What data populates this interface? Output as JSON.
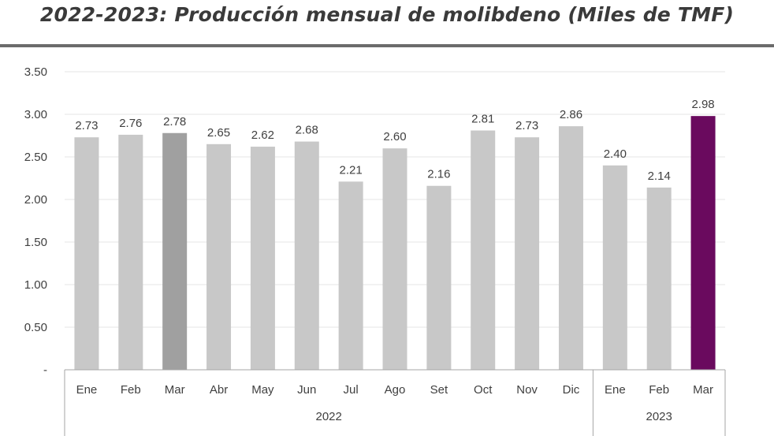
{
  "title": "2022-2023: Producción mensual de molibdeno (Miles de TMF)",
  "chart_data": {
    "type": "bar",
    "title": "2022-2023: Producción mensual de molibdeno (Miles de TMF)",
    "categories": [
      "Ene",
      "Feb",
      "Mar",
      "Abr",
      "May",
      "Jun",
      "Jul",
      "Ago",
      "Set",
      "Oct",
      "Nov",
      "Dic",
      "Ene",
      "Feb",
      "Mar"
    ],
    "groups": [
      {
        "label": "2022",
        "count": 12
      },
      {
        "label": "2023",
        "count": 3
      }
    ],
    "values": [
      2.73,
      2.76,
      2.78,
      2.65,
      2.62,
      2.68,
      2.21,
      2.6,
      2.16,
      2.81,
      2.73,
      2.86,
      2.4,
      2.14,
      2.98
    ],
    "value_labels": [
      "2.73",
      "2.76",
      "2.78",
      "2.65",
      "2.62",
      "2.68",
      "2.21",
      "2.60",
      "2.16",
      "2.81",
      "2.73",
      "2.86",
      "2.40",
      "2.14",
      "2.98"
    ],
    "colors": [
      "#c8c8c8",
      "#c8c8c8",
      "#a0a0a0",
      "#c8c8c8",
      "#c8c8c8",
      "#c8c8c8",
      "#c8c8c8",
      "#c8c8c8",
      "#c8c8c8",
      "#c8c8c8",
      "#c8c8c8",
      "#c8c8c8",
      "#c8c8c8",
      "#c8c8c8",
      "#6a0a5e"
    ],
    "yticks": [
      "-",
      "0.50",
      "1.00",
      "1.50",
      "2.00",
      "2.50",
      "3.00",
      "3.50"
    ],
    "ylim": [
      0,
      3.5
    ],
    "grid": true,
    "legend": "none"
  }
}
